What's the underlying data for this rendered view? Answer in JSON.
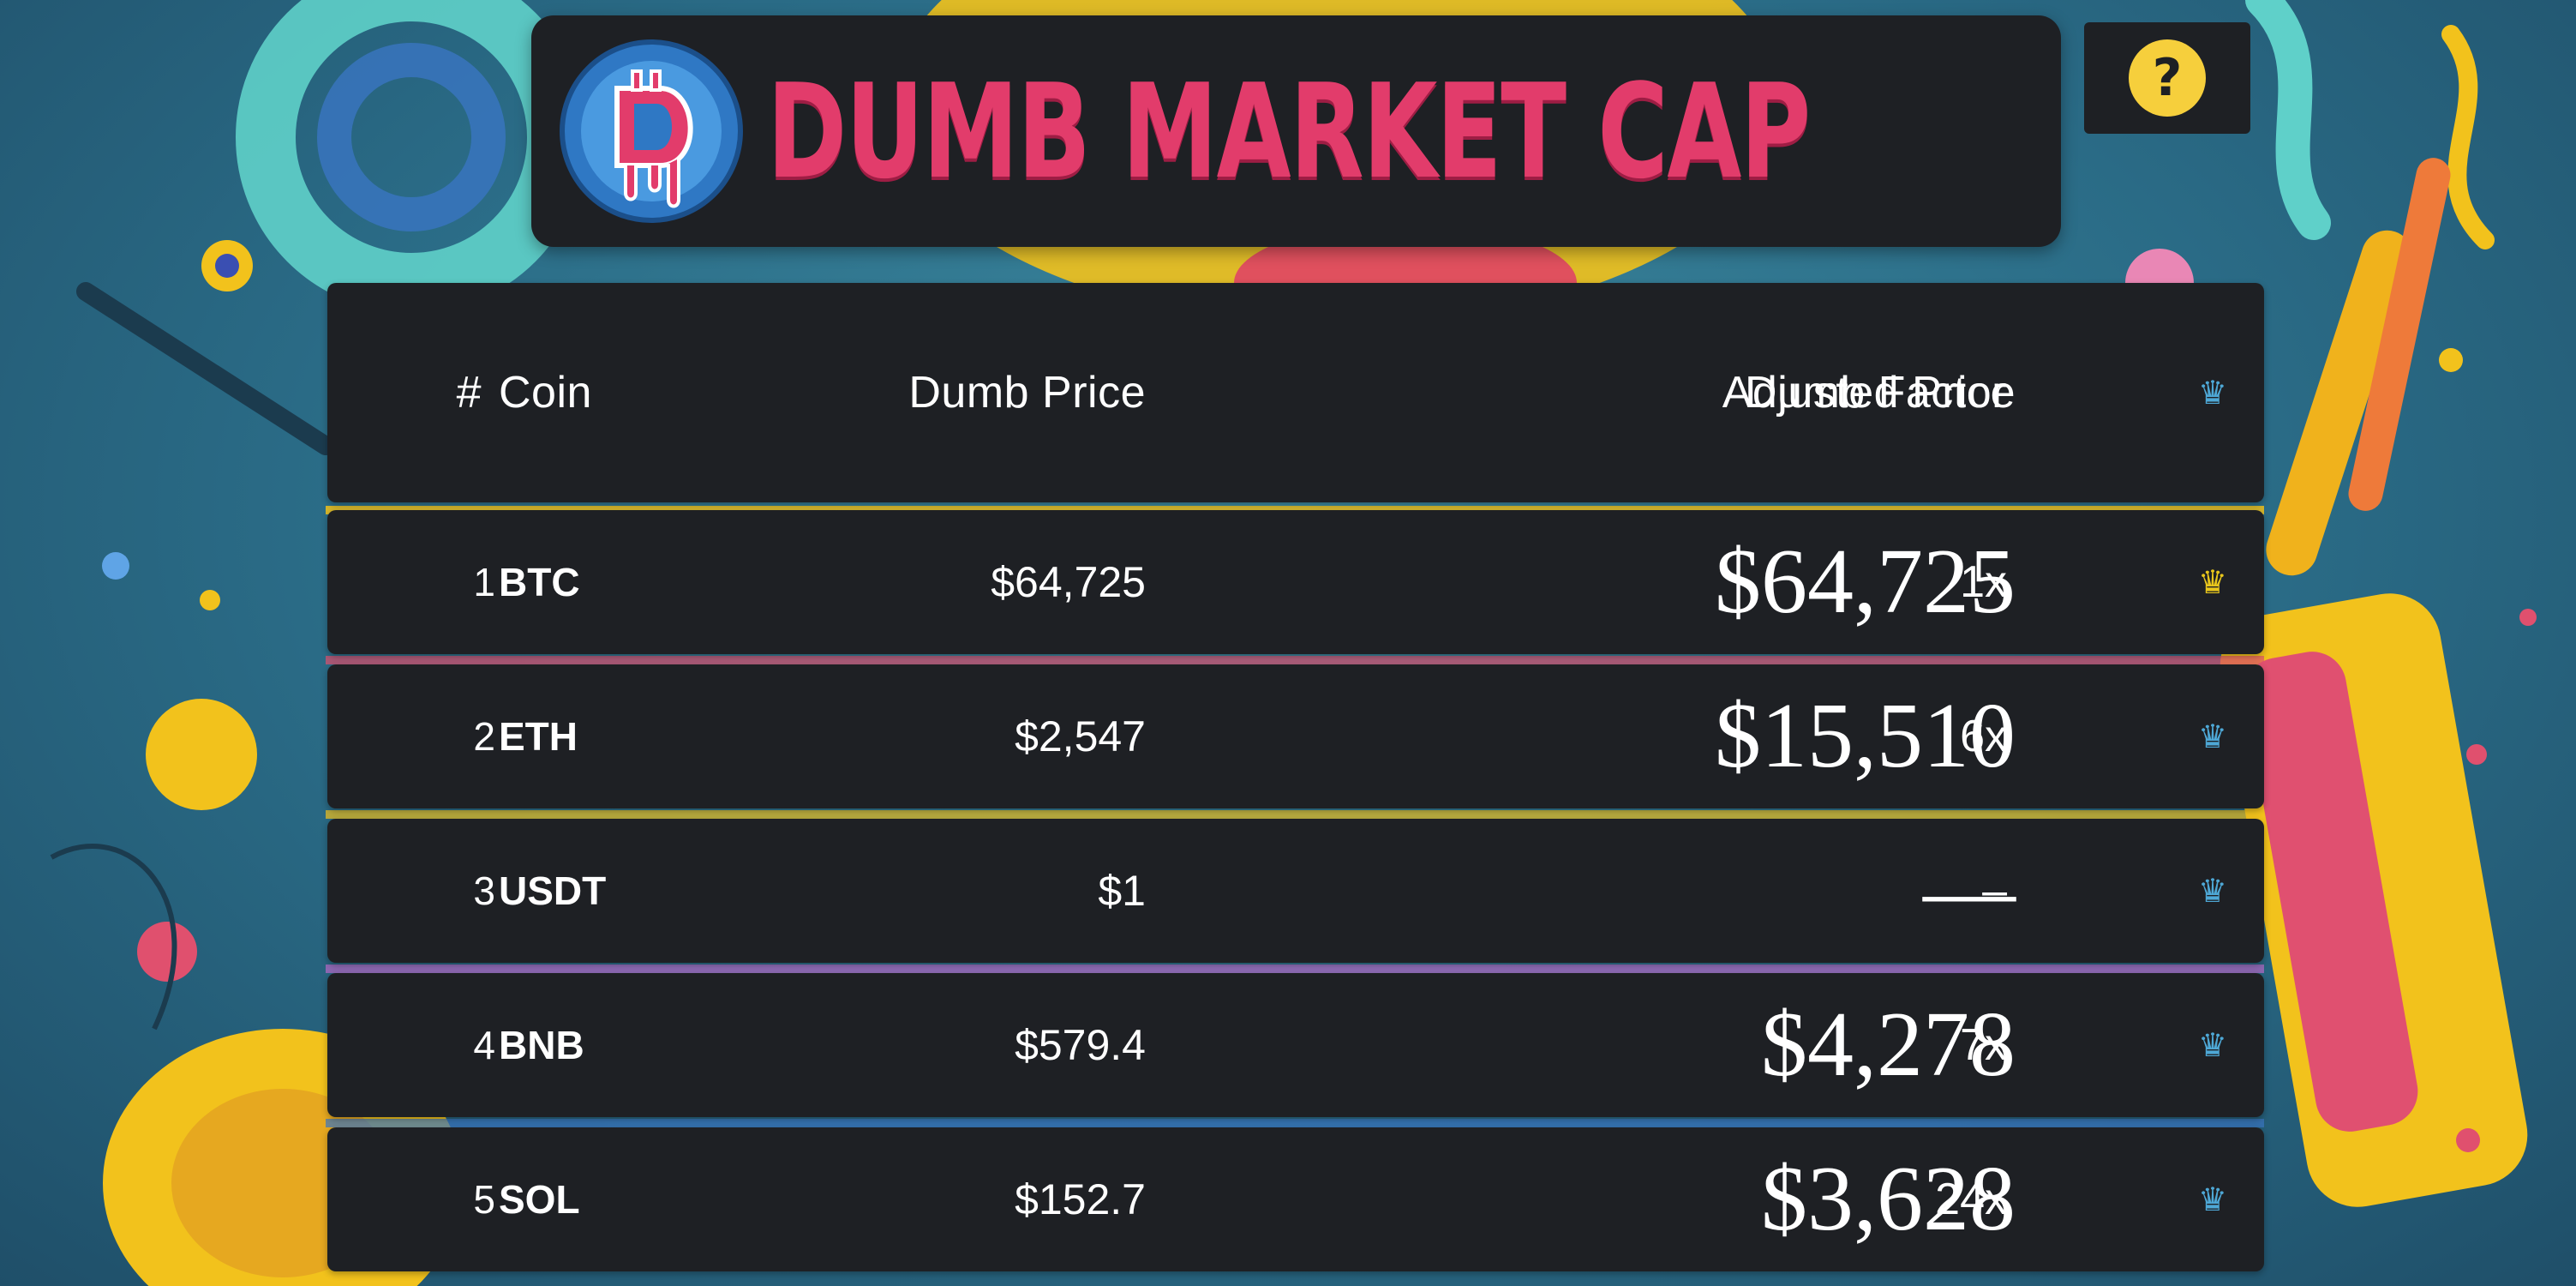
{
  "app": {
    "title": "DUMB MARKET CAP",
    "help_label": "?"
  },
  "colors": {
    "panel": "#1e2024",
    "brand_pink": "#e23c6b",
    "help_yellow": "#f6cf3c",
    "crown_gold": "#e8c61c",
    "crown_blue": "#4ea8d6"
  },
  "table": {
    "headers": {
      "rank": "#",
      "coin": "Coin",
      "dumb_price": "Dumb Price",
      "adjusted_price": "Adjusted Price",
      "dumb_factor": "Dumb Factor",
      "crown_icon": "crown-icon"
    },
    "rows": [
      {
        "rank": "1",
        "coin": "BTC",
        "dumb_price": "$64,725",
        "adjusted_price": "$64,725",
        "dumb_factor": "1x",
        "crown": "gold"
      },
      {
        "rank": "2",
        "coin": "ETH",
        "dumb_price": "$2,547",
        "adjusted_price": "$15,510",
        "dumb_factor": "6x",
        "crown": "blue"
      },
      {
        "rank": "3",
        "coin": "USDT",
        "dumb_price": "$1",
        "adjusted_price": "—",
        "dumb_factor": "–",
        "crown": "blue"
      },
      {
        "rank": "4",
        "coin": "BNB",
        "dumb_price": "$579.4",
        "adjusted_price": "$4,278",
        "dumb_factor": "7x",
        "crown": "blue"
      },
      {
        "rank": "5",
        "coin": "SOL",
        "dumb_price": "$152.7",
        "adjusted_price": "$3,628",
        "dumb_factor": "24x",
        "crown": "blue"
      }
    ]
  }
}
